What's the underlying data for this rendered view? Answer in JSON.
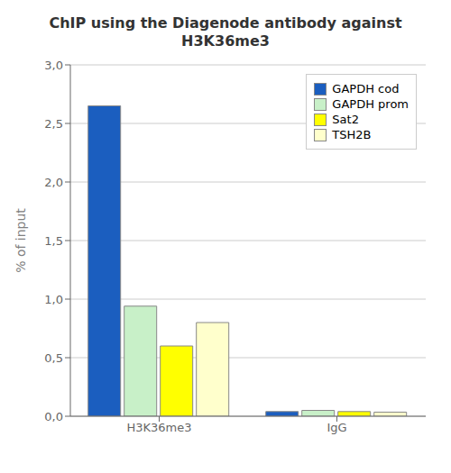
{
  "chart_data": {
    "type": "bar",
    "title": "ChIP using the Diagenode antibody against\nH3K36me3",
    "ylabel": "% of input",
    "categories": [
      "H3K36me3",
      "IgG"
    ],
    "series": [
      {
        "name": "GAPDH cod",
        "color": "#1B5EBF",
        "values": [
          2.65,
          0.04
        ]
      },
      {
        "name": "GAPDH prom",
        "color": "#C8F0C8",
        "values": [
          0.94,
          0.05
        ]
      },
      {
        "name": "Sat2",
        "color": "#FFFF00",
        "values": [
          0.6,
          0.04
        ]
      },
      {
        "name": "TSH2B",
        "color": "#FFFFCC",
        "values": [
          0.8,
          0.035
        ]
      }
    ],
    "ylim": [
      0,
      3.0
    ],
    "yticks": [
      {
        "value": 0.0,
        "label": "0,0"
      },
      {
        "value": 0.5,
        "label": "0,5"
      },
      {
        "value": 1.0,
        "label": "1,0"
      },
      {
        "value": 1.5,
        "label": "1,5"
      },
      {
        "value": 2.0,
        "label": "2,0"
      },
      {
        "value": 2.5,
        "label": "2,5"
      },
      {
        "value": 3.0,
        "label": "3,0"
      }
    ],
    "grid": true,
    "legend": "upper right"
  }
}
